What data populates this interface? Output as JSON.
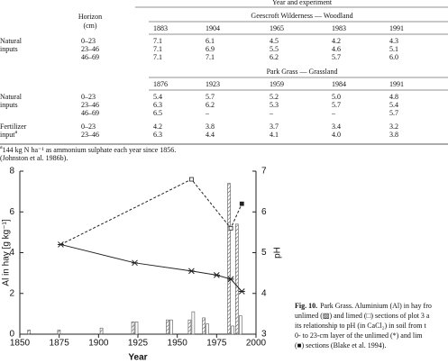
{
  "table": {
    "header": "Year and experiment",
    "horizon_label": [
      "Horizon",
      "(cm)"
    ],
    "sections": [
      {
        "title": "Geescroft Wilderness — Woodland",
        "years": [
          "1883",
          "1904",
          "1965",
          "1983",
          "1991"
        ],
        "groups": [
          {
            "label": [
              "Natural",
              "inputs"
            ],
            "rows": [
              {
                "horizon": "0–23",
                "values": [
                  "7.1",
                  "6.1",
                  "4.5",
                  "4.2",
                  "4.3"
                ]
              },
              {
                "horizon": "23–46",
                "values": [
                  "7.1",
                  "6.9",
                  "5.5",
                  "4.6",
                  "5.1"
                ]
              },
              {
                "horizon": "46–69",
                "values": [
                  "7.1",
                  "7.1",
                  "6.2",
                  "5.7",
                  "6.0"
                ]
              }
            ]
          }
        ]
      },
      {
        "title": "Park Grass — Grassland",
        "years": [
          "1876",
          "1923",
          "1959",
          "1984",
          "1991"
        ],
        "groups": [
          {
            "label": [
              "Natural",
              "inputs"
            ],
            "rows": [
              {
                "horizon": "0–23",
                "values": [
                  "5.4",
                  "5.7",
                  "5.2",
                  "5.0",
                  "4.8"
                ]
              },
              {
                "horizon": "23–46",
                "values": [
                  "6.3",
                  "6.2",
                  "5.3",
                  "5.7",
                  "5.4"
                ]
              },
              {
                "horizon": "46–69",
                "values": [
                  "6.5",
                  "–",
                  "–",
                  "–",
                  "5.7"
                ]
              }
            ]
          },
          {
            "label": [
              "Fertilizer",
              "input"
            ],
            "mark": "a",
            "rows": [
              {
                "horizon": "0–23",
                "values": [
                  "4.2",
                  "3.8",
                  "3.7",
                  "3.4",
                  "3.2"
                ]
              },
              {
                "horizon": "23–46",
                "values": [
                  "6.3",
                  "4.4",
                  "4.1",
                  "4.0",
                  "3.8"
                ]
              }
            ]
          }
        ]
      }
    ],
    "footnote": {
      "mark": "a",
      "text": "144 kg N ha⁻¹ as ammonium sulphate each year since 1856."
    },
    "source": "(Johnston et al. 1986b)."
  },
  "chart_data": {
    "type": "combo",
    "xlabel": "Year",
    "ylabel": "Al in hay [g kg⁻¹]",
    "y2label": "pH",
    "xlim": [
      1850,
      2000
    ],
    "xticks": [
      1850,
      1875,
      1900,
      1925,
      1950,
      1975,
      2000
    ],
    "ylim": [
      0,
      8
    ],
    "yticks": [
      0,
      2,
      4,
      6,
      8
    ],
    "y2lim": [
      3,
      7
    ],
    "y2ticks": [
      3,
      4,
      5,
      6,
      7
    ],
    "series": [
      {
        "type": "bar",
        "pattern": "hatched",
        "color": "#555555",
        "x": [
          1857,
          1876,
          1903,
          1923,
          1945,
          1959,
          1968,
          1984,
          1989
        ],
        "values": [
          0.2,
          0.2,
          0.3,
          0.6,
          0.7,
          0.7,
          0.8,
          7.4,
          5.4
        ]
      },
      {
        "type": "bar",
        "pattern": "open",
        "color": "#555555",
        "x": [
          1923,
          1945,
          1959,
          1968,
          1984,
          1989
        ],
        "values": [
          0.6,
          0.7,
          1.1,
          0.5,
          0.4,
          0.9
        ]
      },
      {
        "type": "line",
        "axis": "y2",
        "marker": "star",
        "dash": false,
        "color": "#222222",
        "x": [
          1876,
          1923,
          1959,
          1975,
          1984,
          1991
        ],
        "values": [
          5.2,
          4.75,
          4.55,
          4.45,
          4.35,
          4.05
        ]
      },
      {
        "type": "line",
        "axis": "y2",
        "marker": "square",
        "dash": true,
        "color": "#222222",
        "x": [
          1876,
          1959,
          1984,
          1991
        ],
        "values": [
          5.2,
          6.8,
          5.6,
          6.2
        ]
      }
    ]
  },
  "caption": {
    "label": "Fig. 10.",
    "lines": [
      "Park Grass. Aluminium (Al) in hay fro",
      "unlimed (▨) and limed (□) sections of plot 3 a",
      "its relationship to pH (in CaCl₂) in soil from t",
      "0- to 23-cm layer of the unlimed (*) and lim",
      "(■) sections (Blake et al. 1994)."
    ]
  }
}
